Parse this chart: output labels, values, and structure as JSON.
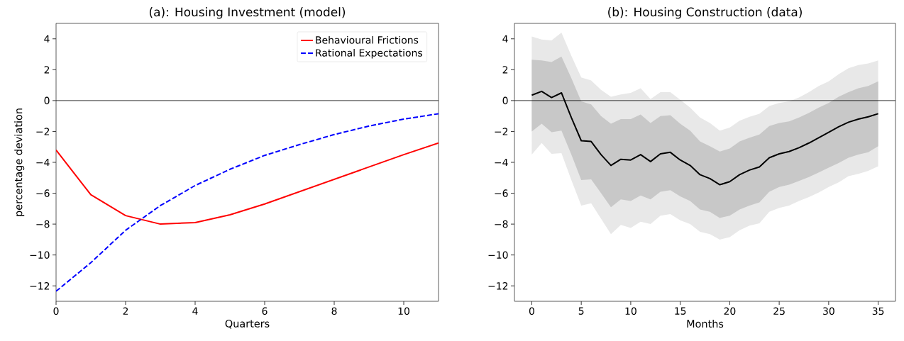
{
  "chart_data": [
    {
      "type": "line",
      "title": "(a): Housing Investment (model)",
      "xlabel": "Quarters",
      "ylabel": "percentage deviation",
      "x": [
        0,
        1,
        2,
        3,
        4,
        5,
        6,
        7,
        8,
        9,
        10,
        11
      ],
      "series": [
        {
          "name": "Behavioural Frictions",
          "color": "#ff0000",
          "line_style": "solid",
          "values": [
            -3.2,
            -6.1,
            -7.45,
            -8.0,
            -7.9,
            -7.4,
            -6.7,
            -5.9,
            -5.1,
            -4.3,
            -3.5,
            -2.75
          ]
        },
        {
          "name": "Rational Expectations",
          "color": "#0000ff",
          "line_style": "dashed",
          "values": [
            -12.35,
            -10.5,
            -8.4,
            -6.8,
            -5.5,
            -4.45,
            -3.55,
            -2.85,
            -2.2,
            -1.65,
            -1.2,
            -0.85
          ]
        }
      ],
      "xlim": [
        0,
        11
      ],
      "xticks": [
        0,
        2,
        4,
        6,
        8,
        10
      ],
      "ylim": [
        -13,
        5
      ],
      "yticks": [
        {
          "value": -12,
          "label": "−12"
        },
        {
          "value": -10,
          "label": "−10"
        },
        {
          "value": -8,
          "label": "−8"
        },
        {
          "value": -6,
          "label": "−6"
        },
        {
          "value": -4,
          "label": "−4"
        },
        {
          "value": -2,
          "label": "−2"
        },
        0,
        2,
        4
      ],
      "ref_lines": [
        {
          "axis": "y",
          "value": 0,
          "color": "#000000"
        }
      ],
      "legend": "top right",
      "grid": false
    },
    {
      "type": "line",
      "title": "(b): Housing Construction (data)",
      "xlabel": "Months",
      "x": [
        0,
        1,
        2,
        3,
        4,
        5,
        6,
        7,
        8,
        9,
        10,
        11,
        12,
        13,
        14,
        15,
        16,
        17,
        18,
        19,
        20,
        21,
        22,
        23,
        24,
        25,
        26,
        27,
        28,
        29,
        30,
        31,
        32,
        33,
        34,
        35
      ],
      "series": [
        {
          "color": "#e8e8e8",
          "values": [
            null,
            null,
            null,
            null,
            null,
            null,
            null,
            null,
            null,
            null,
            null,
            null,
            null,
            null,
            null,
            null,
            null,
            null,
            null,
            null,
            null,
            null,
            null,
            null,
            null,
            null,
            null,
            null,
            null,
            null,
            null,
            null,
            null,
            null,
            null,
            null
          ],
          "lower": [
            -3.5,
            -2.75,
            -3.45,
            -3.4,
            -5.15,
            -6.8,
            -6.65,
            -7.65,
            -8.65,
            -8.05,
            -8.25,
            -7.85,
            -8.0,
            -7.45,
            -7.35,
            -7.75,
            -8.0,
            -8.5,
            -8.65,
            -9.0,
            -8.85,
            -8.4,
            -8.1,
            -7.95,
            -7.2,
            -6.95,
            -6.8,
            -6.5,
            -6.25,
            -5.95,
            -5.6,
            -5.3,
            -4.9,
            -4.75,
            -4.55,
            -4.25
          ],
          "upper": [
            4.15,
            3.95,
            3.9,
            4.4,
            2.9,
            1.5,
            1.3,
            0.7,
            0.25,
            0.4,
            0.5,
            0.8,
            0.1,
            0.55,
            0.55,
            0.05,
            -0.45,
            -1.1,
            -1.45,
            -1.95,
            -1.75,
            -1.3,
            -1.05,
            -0.85,
            -0.35,
            -0.15,
            -0.05,
            0.2,
            0.55,
            0.95,
            1.25,
            1.7,
            2.1,
            2.3,
            2.4,
            2.6
          ]
        },
        {
          "color": "#c8c8c8",
          "values": [
            null,
            null,
            null,
            null,
            null,
            null,
            null,
            null,
            null,
            null,
            null,
            null,
            null,
            null,
            null,
            null,
            null,
            null,
            null,
            null,
            null,
            null,
            null,
            null,
            null,
            null,
            null,
            null,
            null,
            null,
            null,
            null,
            null,
            null,
            null,
            null
          ],
          "lower": [
            -2.0,
            -1.5,
            -2.05,
            -1.95,
            -3.5,
            -5.15,
            -5.1,
            -6.0,
            -6.9,
            -6.4,
            -6.5,
            -6.15,
            -6.4,
            -5.9,
            -5.8,
            -6.2,
            -6.5,
            -7.05,
            -7.2,
            -7.6,
            -7.45,
            -7.05,
            -6.8,
            -6.6,
            -5.9,
            -5.6,
            -5.45,
            -5.2,
            -4.95,
            -4.65,
            -4.35,
            -4.05,
            -3.7,
            -3.5,
            -3.35,
            -2.95
          ],
          "upper": [
            2.65,
            2.6,
            2.5,
            2.85,
            1.45,
            -0.05,
            -0.25,
            -1.0,
            -1.5,
            -1.2,
            -1.2,
            -0.9,
            -1.45,
            -1.0,
            -0.95,
            -1.5,
            -1.95,
            -2.65,
            -2.95,
            -3.3,
            -3.1,
            -2.65,
            -2.4,
            -2.2,
            -1.65,
            -1.45,
            -1.35,
            -1.1,
            -0.8,
            -0.45,
            -0.15,
            0.25,
            0.55,
            0.8,
            0.95,
            1.25
          ]
        },
        {
          "color": "#000000",
          "line_style": "solid",
          "values": [
            0.35,
            0.6,
            0.2,
            0.5,
            -1.1,
            -2.6,
            -2.65,
            -3.5,
            -4.2,
            -3.8,
            -3.85,
            -3.5,
            -3.95,
            -3.45,
            -3.35,
            -3.85,
            -4.2,
            -4.8,
            -5.05,
            -5.45,
            -5.25,
            -4.8,
            -4.5,
            -4.3,
            -3.7,
            -3.45,
            -3.3,
            -3.05,
            -2.75,
            -2.4,
            -2.05,
            -1.7,
            -1.4,
            -1.2,
            -1.05,
            -0.85
          ]
        }
      ],
      "xlim": [
        -1.75,
        36.75
      ],
      "xticks": [
        0,
        5,
        10,
        15,
        20,
        25,
        30,
        35
      ],
      "ylim": [
        -13,
        5
      ],
      "yticks": [
        {
          "value": -12,
          "label": "−12"
        },
        {
          "value": -10,
          "label": "−10"
        },
        {
          "value": -8,
          "label": "−8"
        },
        {
          "value": -6,
          "label": "−6"
        },
        {
          "value": -4,
          "label": "−4"
        },
        {
          "value": -2,
          "label": "−2"
        },
        0,
        2,
        4
      ],
      "ref_lines": [
        {
          "axis": "y",
          "value": 0,
          "color": "#000000"
        }
      ],
      "legend": false,
      "grid": false
    }
  ]
}
